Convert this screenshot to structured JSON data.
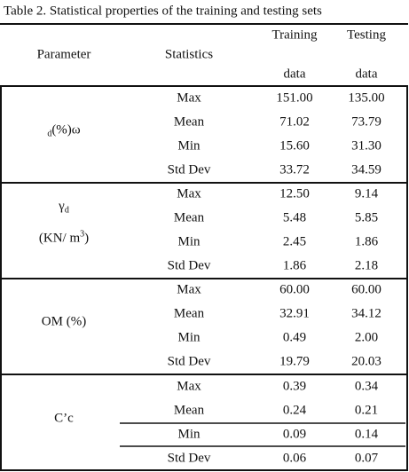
{
  "title": "Table 2.  Statistical properties of the training and testing sets",
  "header": {
    "parameter": "Parameter",
    "statistics": "Statistics",
    "training": [
      "Training",
      "data"
    ],
    "testing": [
      "Testing",
      "data"
    ]
  },
  "groups": [
    {
      "parameter": [
        [
          {
            "text": "d",
            "style": "sub"
          },
          {
            "text": "(%)ω"
          }
        ]
      ],
      "rows": [
        [
          "Max",
          "151.00",
          "135.00"
        ],
        [
          "Mean",
          "71.02",
          "73.79"
        ],
        [
          "Min",
          "15.60",
          "31.30"
        ],
        [
          "Std Dev",
          "33.72",
          "34.59"
        ]
      ]
    },
    {
      "parameter": [
        [
          {
            "text": "γ"
          },
          {
            "text": "d",
            "style": "sub"
          }
        ],
        [
          {
            "text": "(KN/ m"
          },
          {
            "text": "3",
            "style": "sup"
          },
          {
            "text": ")"
          }
        ]
      ],
      "rows": [
        [
          "Max",
          "12.50",
          "9.14"
        ],
        [
          "Mean",
          "5.48",
          "5.85"
        ],
        [
          "Min",
          "2.45",
          "1.86"
        ],
        [
          "Std Dev",
          "1.86",
          "2.18"
        ]
      ]
    },
    {
      "parameter": [
        [
          {
            "text": "OM (%)"
          }
        ]
      ],
      "rows": [
        [
          "Max",
          "60.00",
          "60.00"
        ],
        [
          "Mean",
          "32.91",
          "34.12"
        ],
        [
          "Min",
          "0.49",
          "2.00"
        ],
        [
          "Std Dev",
          "19.79",
          "20.03"
        ]
      ]
    },
    {
      "parameter": [
        [
          {
            "text": "C’c"
          }
        ]
      ],
      "rows": [
        [
          "Max",
          "0.39",
          "0.34"
        ],
        [
          "Mean",
          "0.24",
          "0.21"
        ],
        [
          "Min",
          "0.09",
          "0.14"
        ],
        [
          "Std Dev",
          "0.06",
          "0.07"
        ]
      ]
    }
  ]
}
